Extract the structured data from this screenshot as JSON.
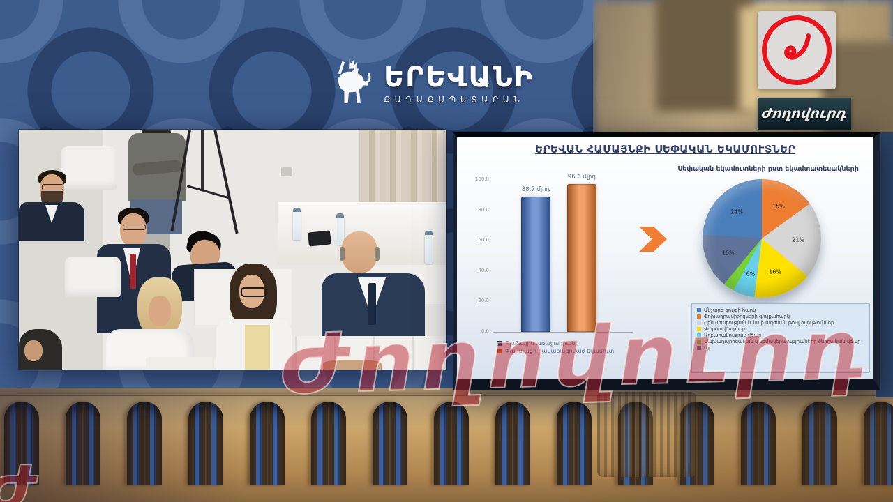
{
  "header": {
    "title_line1": "ԵՐԵՎԱՆԻ",
    "title_line2": "ՔԱՂԱՔԱՊԵՏԱՐԱՆ"
  },
  "broadcaster": {
    "name": "Ժողովուրդ",
    "banner_text": "Ժողովուրդ",
    "logo_color": "#e8141e"
  },
  "watermark": {
    "text": "Ժողովուրդ",
    "fragment": "Ժ"
  },
  "slide": {
    "arrow_color": "#ed7d31",
    "background_top": "#ffffff",
    "background_bottom": "#d8e2ef"
  },
  "chart_data": [
    {
      "type": "bar",
      "title": "ԵՐԵՎԱՆ ՀԱՄԱՅՆՔԻ ՍԵՓԱԿԱՆ ԵԿԱՄՈՒՏՆԵՐ",
      "categories": [
        "Պլանային առաջադրանք",
        "Փաստացի հավաքագրված եկամուտ"
      ],
      "values": [
        88.7,
        96.6
      ],
      "value_labels": [
        "88.7 մլրդ",
        "96.6 մլրդ"
      ],
      "bar_colors": [
        "#4472c4",
        "#ed7d31"
      ],
      "legend_colors": [
        "#1f3864",
        "#c55a11"
      ],
      "ylim": [
        0,
        100
      ],
      "yticks": [
        "100.0",
        "80.0",
        "60.0",
        "40.0",
        "20.0",
        "0.0"
      ],
      "grid": false,
      "legend_position": "bottom"
    },
    {
      "type": "pie",
      "title": "Սեփական եկամուտների ըստ եկամտատեսակների",
      "legend_position": "bottom",
      "slices": [
        {
          "label": "Անշարժ գույքի հարկ",
          "value": 24,
          "pct_label": "24%",
          "color": "#4a7ebb"
        },
        {
          "label": "Փոխադրամիջոցների գույքահարկ",
          "value": 15,
          "pct_label": "15%",
          "color": "#ed7d31"
        },
        {
          "label": "Շինարարության և նախագծման թույլտվություններ",
          "value": 21,
          "pct_label": "21%",
          "color": "#d6d6d6"
        },
        {
          "label": "Վարձավճարներ",
          "value": 16,
          "pct_label": "16%",
          "color": "#ffe100"
        },
        {
          "label": "Աղբահանության վճար",
          "value": 6,
          "pct_label": "6%",
          "color": "#67cfe8"
        },
        {
          "label": "Նախադպրոցական կազմակերպությունների ծնողական վճար",
          "value": 3,
          "pct_label": "",
          "color": "#76d134"
        },
        {
          "label": "Այլ",
          "value": 15,
          "pct_label": "15%",
          "color": "#5f7299"
        }
      ]
    }
  ]
}
